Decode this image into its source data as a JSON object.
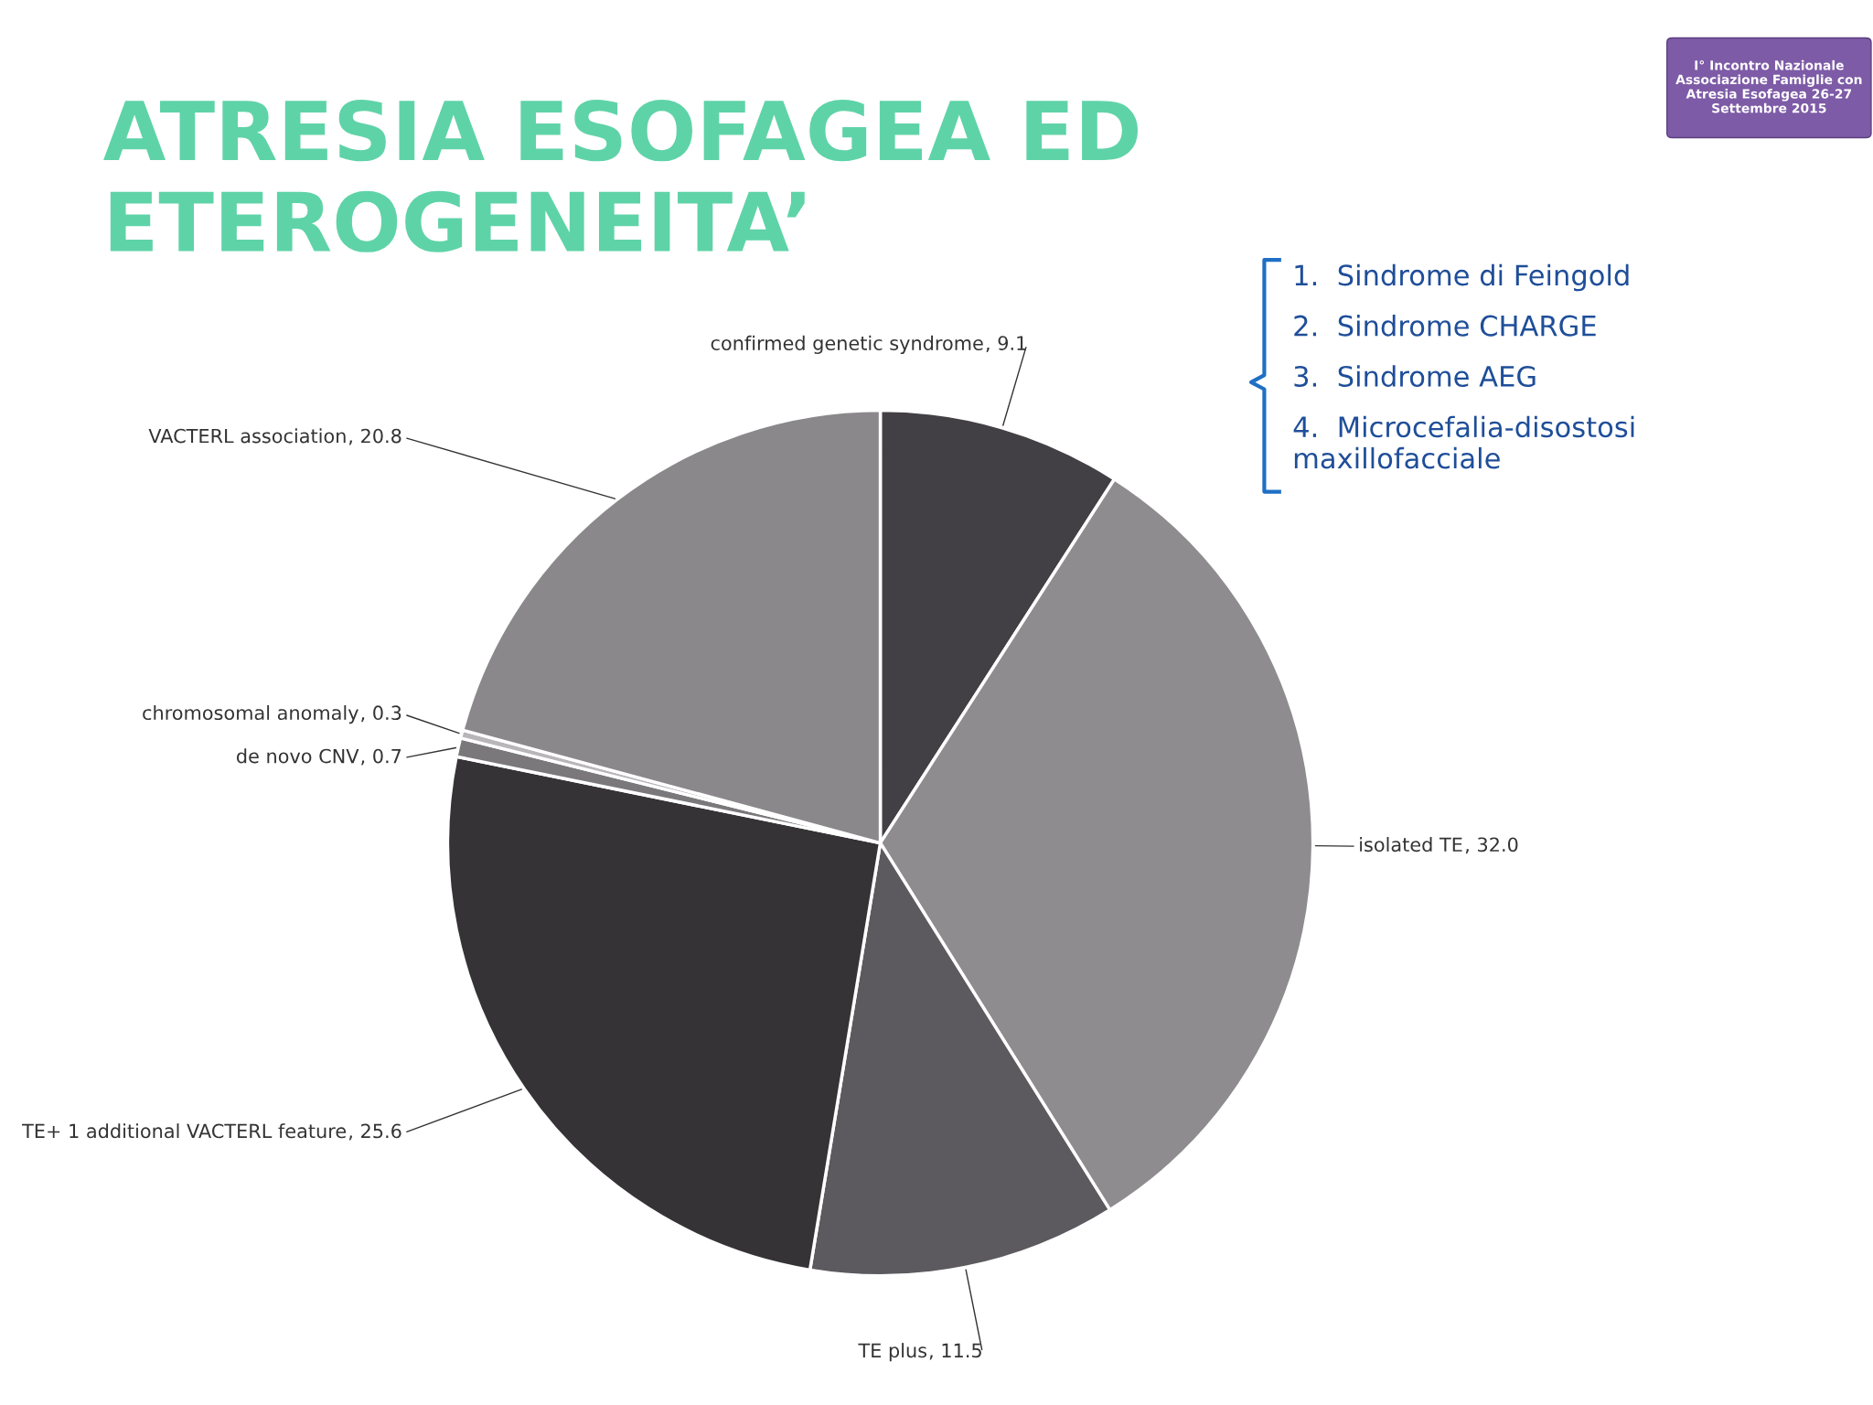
{
  "chart_data": {
    "type": "pie",
    "title": "ATRESIA ESOFAGEA ED ETEROGENEITA’",
    "categories": [
      "confirmed genetic syndrome",
      "isolated TE",
      "TE plus",
      "TE+ 1 additional VACTERL feature",
      "de novo CNV",
      "chromosomal anomaly",
      "VACTERL association"
    ],
    "values": [
      9.1,
      32.0,
      11.5,
      25.6,
      0.7,
      0.3,
      20.8
    ],
    "colors": [
      "#424044",
      "#8e8c8f",
      "#5c5a5e",
      "#353336",
      "#7a787b",
      "#b8b6b9",
      "#8a888b"
    ],
    "value_labels": [
      ", 9.1",
      ", 32.0",
      ", 11.5",
      ", 25.6",
      ", 0.7",
      ", 0.3",
      ", 20.8"
    ],
    "annotations": [
      "1.  Sindrome di Feingold",
      "2.  Sindrome CHARGE",
      "3.  Sindrome AEG",
      "4.  Microcefalia-disostosi maxillofacciale",
      "I° Incontro Nazionale Associazione Famiglie con Atresia Esofagea 26-27 Settembre 2015"
    ]
  }
}
